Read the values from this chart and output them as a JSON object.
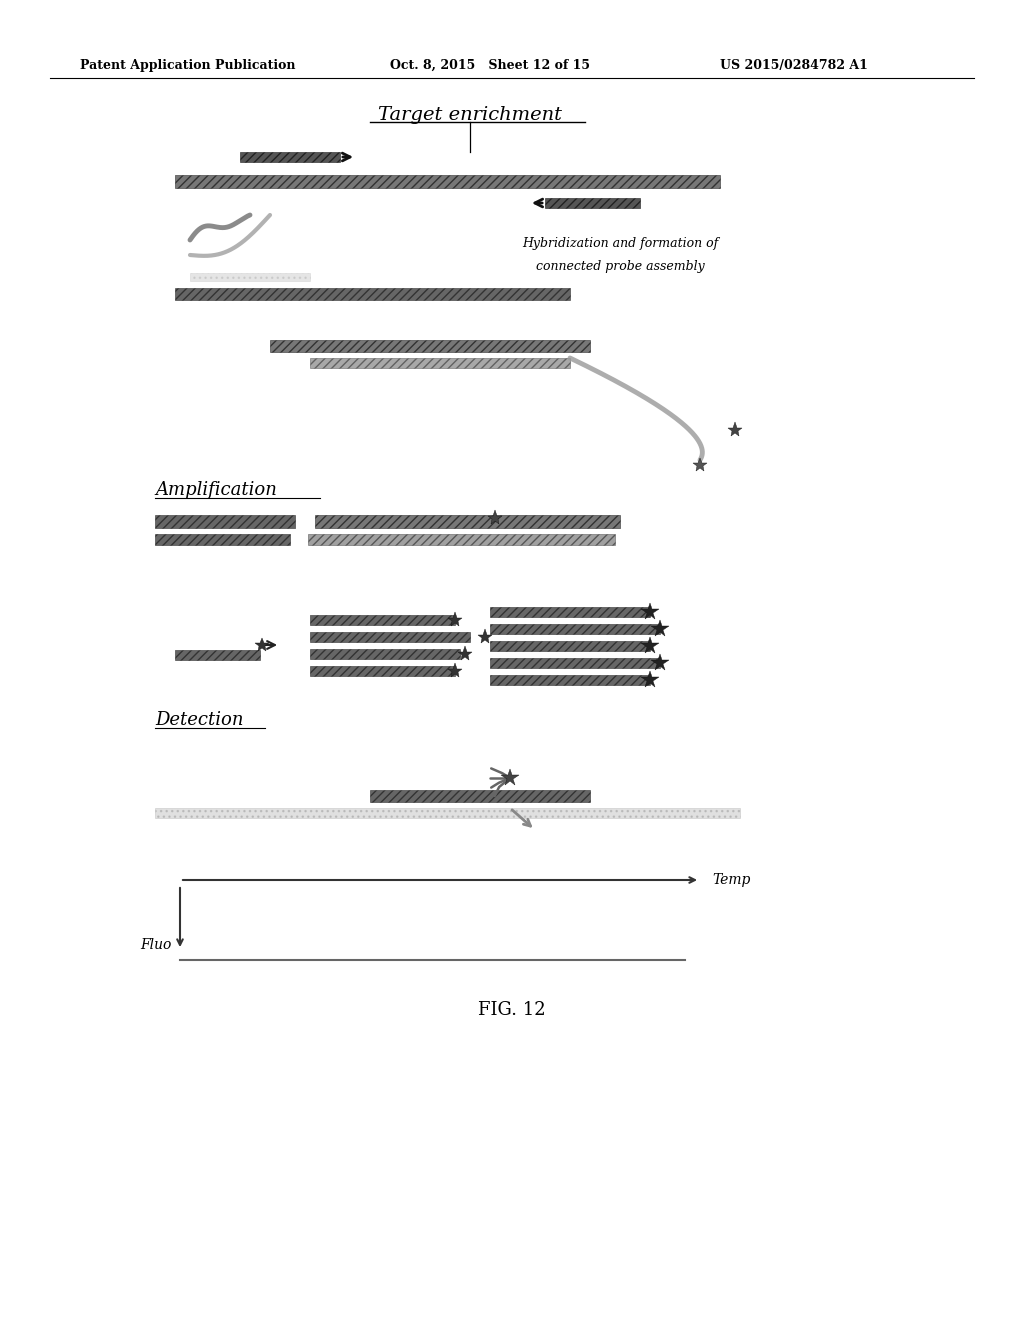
{
  "header_left": "Patent Application Publication",
  "header_mid": "Oct. 8, 2015   Sheet 12 of 15",
  "header_right": "US 2015/0284782 A1",
  "fig_label": "FIG. 12",
  "title_enrichment": "Target enrichment",
  "label_hybridization": "Hybridization and formation of\nconnected probe assembly",
  "label_amplification": "Amplification",
  "label_detection": "Detection",
  "label_fluo": "Fluo",
  "label_temp": "Temp",
  "bg_color": "#ffffff"
}
